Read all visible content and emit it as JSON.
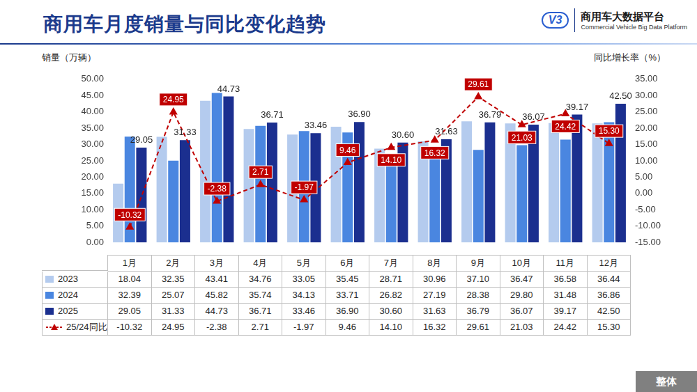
{
  "header": {
    "brand": "商用车大数据平台",
    "brand_en": "Commercial Vehicle Big Data Platform",
    "logo_mark": "V3"
  },
  "tag": "整体",
  "chart_data": {
    "type": "bar",
    "title": "商用车月度销量与同比变化趋势",
    "y_label": "销量（万辆）",
    "y2_label": "同比增长率（%）",
    "categories": [
      "1月",
      "2月",
      "3月",
      "4月",
      "5月",
      "6月",
      "7月",
      "8月",
      "9月",
      "10月",
      "11月",
      "12月"
    ],
    "series": [
      {
        "name": "2023",
        "color": "#b4cbee",
        "values": [
          18.04,
          32.35,
          43.41,
          34.76,
          33.05,
          35.45,
          28.71,
          30.96,
          37.1,
          36.47,
          36.58,
          36.44
        ],
        "value_labels": [
          "18.04",
          "32.35",
          "43.41",
          "34.76",
          "33.05",
          "35.45",
          "28.71",
          "30.96",
          "37.10",
          "36.47",
          "36.58",
          "36.44"
        ],
        "data_labels": false
      },
      {
        "name": "2024",
        "color": "#4a86e0",
        "values": [
          32.39,
          25.07,
          45.82,
          35.74,
          34.13,
          33.71,
          26.82,
          27.19,
          28.38,
          29.8,
          31.48,
          36.86
        ],
        "value_labels": [
          "32.39",
          "25.07",
          "45.82",
          "35.74",
          "34.13",
          "33.71",
          "26.82",
          "27.19",
          "28.38",
          "29.80",
          "31.48",
          "36.86"
        ],
        "data_labels": false
      },
      {
        "name": "2025",
        "color": "#1b2f8f",
        "values": [
          29.05,
          31.33,
          44.73,
          36.71,
          33.46,
          36.9,
          30.6,
          31.63,
          36.79,
          36.07,
          39.17,
          42.5
        ],
        "value_labels": [
          "29.05",
          "31.33",
          "44.73",
          "36.71",
          "33.46",
          "36.90",
          "30.60",
          "31.63",
          "36.79",
          "36.07",
          "39.17",
          "42.50"
        ],
        "data_labels": true
      },
      {
        "name": "25/24同比",
        "type": "line",
        "axis": "y2",
        "color": "#c00000",
        "line_style": "dashed",
        "marker": "triangle",
        "values": [
          -10.32,
          24.95,
          -2.38,
          2.71,
          -1.97,
          9.46,
          14.1,
          16.32,
          29.61,
          21.03,
          24.42,
          15.3
        ],
        "value_labels": [
          "-10.32",
          "24.95",
          "-2.38",
          "2.71",
          "-1.97",
          "9.46",
          "14.10",
          "16.32",
          "29.61",
          "21.03",
          "24.42",
          "15.30"
        ],
        "data_labels": true
      }
    ],
    "ylim": [
      0,
      50
    ],
    "yticks": [
      {
        "value": 0,
        "label": "0.00"
      },
      {
        "value": 5,
        "label": "5.00"
      },
      {
        "value": 10,
        "label": "10.00"
      },
      {
        "value": 15,
        "label": "15.00"
      },
      {
        "value": 20,
        "label": "20.00"
      },
      {
        "value": 25,
        "label": "25.00"
      },
      {
        "value": 30,
        "label": "30.00"
      },
      {
        "value": 35,
        "label": "35.00"
      },
      {
        "value": 40,
        "label": "40.00"
      },
      {
        "value": 45,
        "label": "45.00"
      },
      {
        "value": 50,
        "label": "50.00"
      }
    ],
    "y2lim": [
      -15,
      35
    ],
    "y2ticks": [
      {
        "value": -15,
        "label": "-15.00"
      },
      {
        "value": -10,
        "label": "-10.00"
      },
      {
        "value": -5,
        "label": "-5.00"
      },
      {
        "value": 0,
        "label": "0.00"
      },
      {
        "value": 5,
        "label": "5.00"
      },
      {
        "value": 10,
        "label": "10.00"
      },
      {
        "value": 15,
        "label": "15.00"
      },
      {
        "value": 20,
        "label": "20.00"
      },
      {
        "value": 25,
        "label": "25.00"
      },
      {
        "value": 30,
        "label": "30.00"
      },
      {
        "value": 35,
        "label": "35.00"
      }
    ],
    "grid": false
  }
}
